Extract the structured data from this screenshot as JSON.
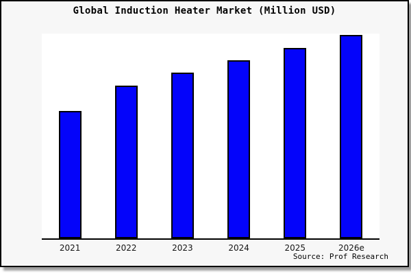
{
  "figure": {
    "background": "#f7f7f7",
    "border_color": "#000000",
    "shadow_color": "#9e9e9e"
  },
  "chart_data": {
    "type": "bar",
    "title": "Global Induction Heater Market (Million USD)",
    "categories": [
      "2021",
      "2022",
      "2023",
      "2024",
      "2025",
      "2026e"
    ],
    "values": [
      188,
      225,
      244,
      263,
      281,
      300
    ],
    "xlabel": "",
    "ylabel": "",
    "ylim": [
      0,
      302
    ],
    "grid": false,
    "legend_position": "none",
    "y_axis_ticks_visible": false,
    "bar_color": "#0404fa",
    "bar_edge_color": "#000000",
    "plot_background": "#ffffff",
    "axis_line_color": "#000000"
  },
  "source": {
    "label": "Source: Prof Research"
  }
}
